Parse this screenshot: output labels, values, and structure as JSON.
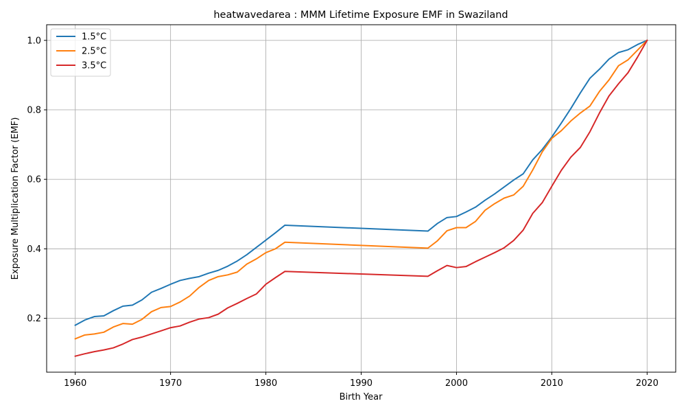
{
  "chart_data": {
    "type": "line",
    "title": "heatwavedarea : MMM Lifetime Exposure EMF in Swaziland",
    "xlabel": "Birth Year",
    "ylabel": "Exposure Multiplication Factor (EMF)",
    "xlim": [
      1957,
      2023
    ],
    "ylim": [
      0.045,
      1.045
    ],
    "xticks": [
      1960,
      1970,
      1980,
      1990,
      2000,
      2010,
      2020
    ],
    "yticks": [
      0.2,
      0.4,
      0.6,
      0.8,
      1.0
    ],
    "ytick_labels": [
      "0.2",
      "0.4",
      "0.6",
      "0.8",
      "1.0"
    ],
    "grid": true,
    "legend_position": "upper-left",
    "series": [
      {
        "name": "1.5°C",
        "color": "#1f77b4",
        "x": [
          1960,
          1961,
          1962,
          1963,
          1964,
          1965,
          1966,
          1967,
          1968,
          1969,
          1970,
          1971,
          1972,
          1973,
          1974,
          1975,
          1976,
          1977,
          1978,
          1979,
          1980,
          1981,
          1982,
          1997,
          1998,
          1999,
          2000,
          2001,
          2002,
          2003,
          2004,
          2005,
          2006,
          2007,
          2008,
          2009,
          2010,
          2011,
          2012,
          2013,
          2014,
          2015,
          2016,
          2017,
          2018,
          2019,
          2020
        ],
        "y": [
          0.18,
          0.195,
          0.205,
          0.207,
          0.222,
          0.235,
          0.238,
          0.253,
          0.275,
          0.286,
          0.298,
          0.309,
          0.315,
          0.32,
          0.33,
          0.338,
          0.35,
          0.365,
          0.383,
          0.404,
          0.425,
          0.446,
          0.468,
          0.451,
          0.473,
          0.49,
          0.493,
          0.506,
          0.52,
          0.54,
          0.558,
          0.578,
          0.598,
          0.616,
          0.656,
          0.686,
          0.722,
          0.762,
          0.804,
          0.849,
          0.891,
          0.917,
          0.946,
          0.965,
          0.973,
          0.988,
          1.0
        ]
      },
      {
        "name": "2.5°C",
        "color": "#ff7f0e",
        "x": [
          1960,
          1961,
          1962,
          1963,
          1964,
          1965,
          1966,
          1967,
          1968,
          1969,
          1970,
          1971,
          1972,
          1973,
          1974,
          1975,
          1976,
          1977,
          1978,
          1979,
          1980,
          1981,
          1982,
          1997,
          1998,
          1999,
          2000,
          2001,
          2002,
          2003,
          2004,
          2005,
          2006,
          2007,
          2008,
          2009,
          2010,
          2011,
          2012,
          2013,
          2014,
          2015,
          2016,
          2017,
          2018,
          2019,
          2020
        ],
        "y": [
          0.141,
          0.152,
          0.155,
          0.16,
          0.175,
          0.185,
          0.183,
          0.197,
          0.219,
          0.231,
          0.234,
          0.247,
          0.264,
          0.289,
          0.309,
          0.32,
          0.325,
          0.333,
          0.356,
          0.371,
          0.389,
          0.4,
          0.419,
          0.402,
          0.423,
          0.452,
          0.461,
          0.461,
          0.479,
          0.511,
          0.53,
          0.546,
          0.555,
          0.58,
          0.627,
          0.679,
          0.718,
          0.74,
          0.768,
          0.791,
          0.811,
          0.853,
          0.886,
          0.927,
          0.944,
          0.972,
          1.0
        ]
      },
      {
        "name": "3.5°C",
        "color": "#d62728",
        "x": [
          1960,
          1961,
          1962,
          1963,
          1964,
          1965,
          1966,
          1967,
          1968,
          1969,
          1970,
          1971,
          1972,
          1973,
          1974,
          1975,
          1976,
          1977,
          1978,
          1979,
          1980,
          1981,
          1982,
          1997,
          1998,
          1999,
          2000,
          2001,
          2002,
          2003,
          2004,
          2005,
          2006,
          2007,
          2008,
          2009,
          2010,
          2011,
          2012,
          2013,
          2014,
          2015,
          2016,
          2017,
          2018,
          2019,
          2020
        ],
        "y": [
          0.091,
          0.098,
          0.104,
          0.109,
          0.115,
          0.126,
          0.139,
          0.146,
          0.155,
          0.164,
          0.173,
          0.178,
          0.189,
          0.198,
          0.202,
          0.212,
          0.23,
          0.243,
          0.257,
          0.27,
          0.298,
          0.317,
          0.335,
          0.321,
          0.337,
          0.352,
          0.346,
          0.349,
          0.363,
          0.376,
          0.389,
          0.403,
          0.424,
          0.454,
          0.502,
          0.533,
          0.58,
          0.626,
          0.664,
          0.692,
          0.737,
          0.791,
          0.84,
          0.875,
          0.907,
          0.952,
          1.0
        ]
      }
    ]
  }
}
